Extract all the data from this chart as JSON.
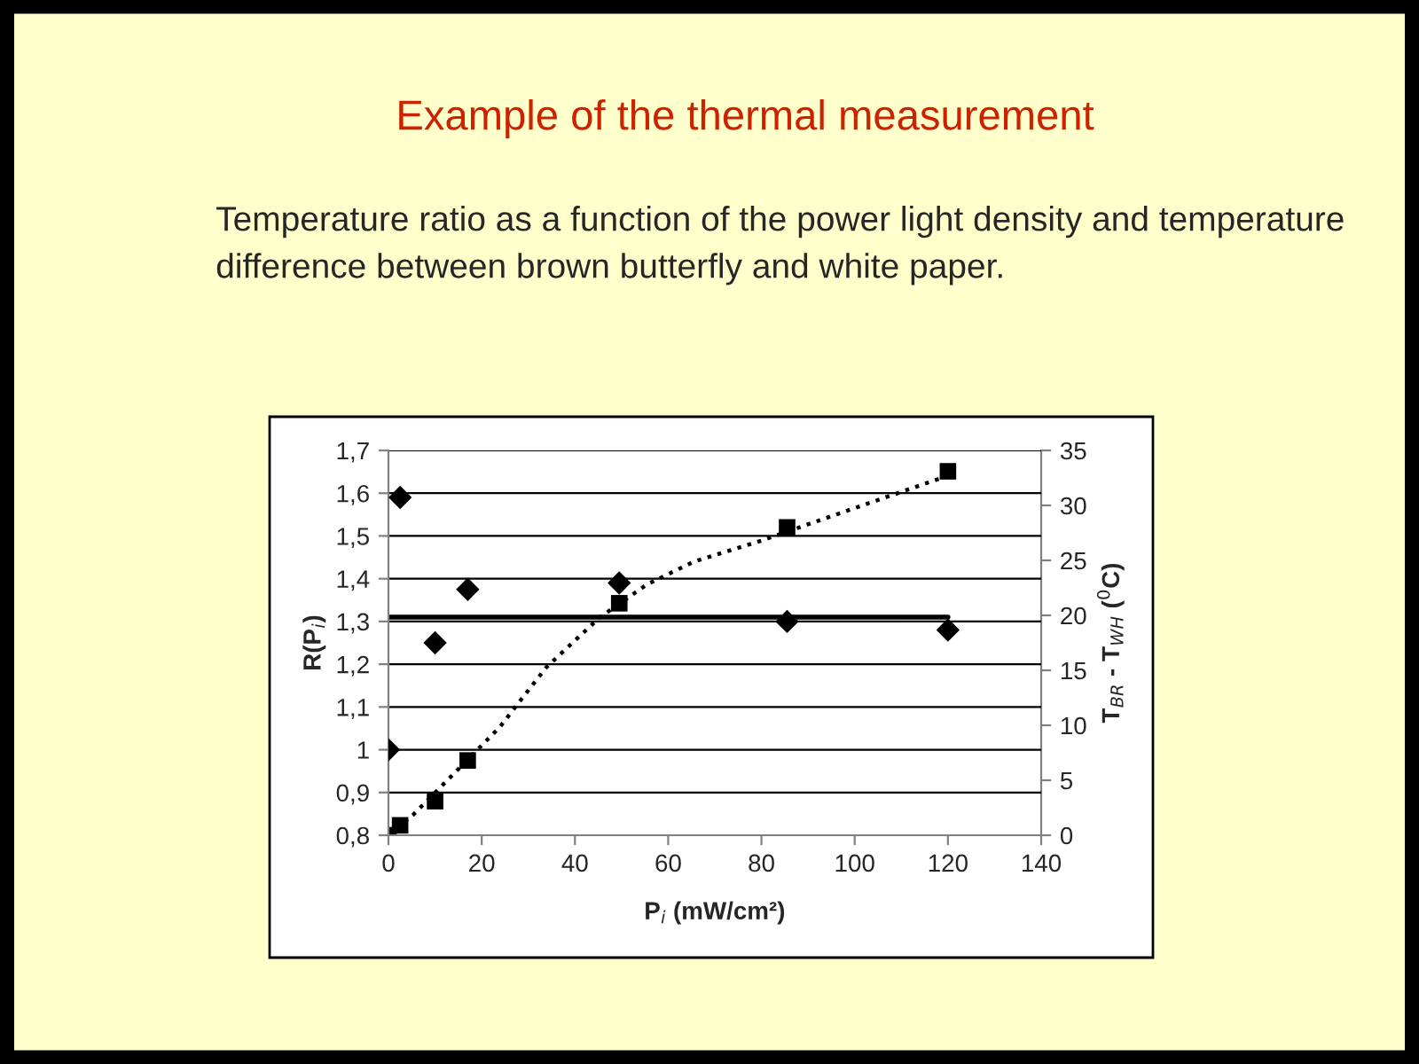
{
  "chart_data": {
    "type": "scatter",
    "title": "Example of the thermal measurement",
    "subtitle": "Temperature ratio as a function of the power light density and temperature difference between brown butterfly and white paper.",
    "xlabel": "P$_{i}$ (mW/cm²)",
    "ylabel": "R(P$_{i}$)",
    "y2label": "T$_{BR}$ - T$_{WH}$ ($^{0}$C)",
    "series": [
      {
        "marker": "diamond",
        "color": "#000000",
        "x": [
          0,
          2.5,
          10,
          17,
          49.5,
          85.5,
          120
        ],
        "values": [
          1.0,
          1.59,
          1.25,
          1.375,
          1.39,
          1.3,
          1.28
        ]
      },
      {
        "type": "line",
        "line_style": "solid",
        "color": "#000000",
        "x": [
          0,
          120
        ],
        "values": [
          1.31,
          1.31
        ]
      },
      {
        "marker": "square",
        "axis": "y2",
        "color": "#000000",
        "x": [
          0,
          2.5,
          10,
          17,
          49.5,
          85.5,
          120
        ],
        "values": [
          0,
          0.9,
          3.1,
          6.8,
          21.1,
          28.0,
          33.1
        ]
      },
      {
        "type": "line",
        "line_style": "dotted",
        "axis": "y2",
        "color": "#000000",
        "x": [
          0,
          5.4,
          12.4,
          23.8,
          33.9,
          45.3,
          55.4,
          65.6,
          80,
          103,
          120
        ],
        "values": [
          0,
          1.9,
          4.9,
          9.8,
          15.3,
          19.8,
          22.8,
          24.9,
          26.8,
          30.2,
          32.7
        ]
      }
    ],
    "xlim": [
      0,
      140
    ],
    "xticks": [
      0,
      20,
      40,
      60,
      80,
      100,
      120,
      140
    ],
    "ylim": [
      0.8,
      1.7
    ],
    "yticks": [
      {
        "value": 0.8,
        "label": "0,8"
      },
      {
        "value": 0.9,
        "label": "0,9"
      },
      1,
      {
        "value": 1.1,
        "label": "1,1"
      },
      {
        "value": 1.2,
        "label": "1,2"
      },
      {
        "value": 1.3,
        "label": "1,3"
      },
      {
        "value": 1.4,
        "label": "1,4"
      },
      {
        "value": 1.5,
        "label": "1,5"
      },
      {
        "value": 1.6,
        "label": "1,6"
      },
      {
        "value": 1.7,
        "label": "1,7"
      }
    ],
    "y2lim": [
      0,
      35
    ],
    "y2ticks": [
      0,
      5,
      10,
      15,
      20,
      25,
      30,
      35
    ],
    "grid": "y",
    "legend": false
  }
}
